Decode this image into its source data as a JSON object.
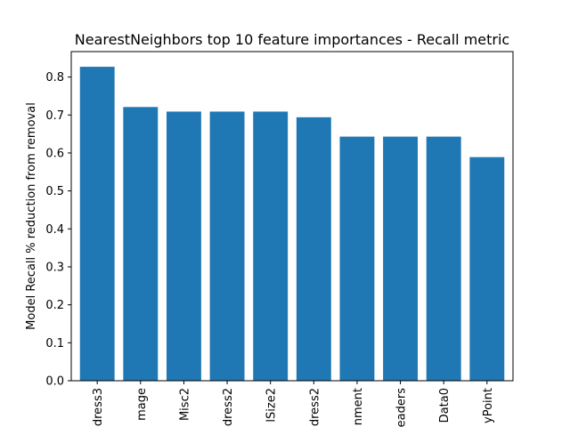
{
  "chart_data": {
    "type": "bar",
    "title": "NearestNeighbors top 10 feature importances - Recall metric",
    "xlabel": "",
    "ylabel": "Model Recall % reduction from removal",
    "categories": [
      "dress3",
      "mage",
      "Misc2",
      "dress2",
      "lSize2",
      "dress2",
      "nment",
      "eaders",
      "Data0",
      "yPoint"
    ],
    "values": [
      0.827,
      0.721,
      0.709,
      0.709,
      0.709,
      0.694,
      0.643,
      0.643,
      0.643,
      0.589
    ],
    "ylim": [
      0,
      0.867
    ],
    "yticks": [
      0.0,
      0.1,
      0.2,
      0.3,
      0.4,
      0.5,
      0.6,
      0.7,
      0.8
    ],
    "ytick_labels": [
      "0.0",
      "0.1",
      "0.2",
      "0.3",
      "0.4",
      "0.5",
      "0.6",
      "0.7",
      "0.8"
    ],
    "grid": false,
    "bar_color": "#1f77b4"
  }
}
